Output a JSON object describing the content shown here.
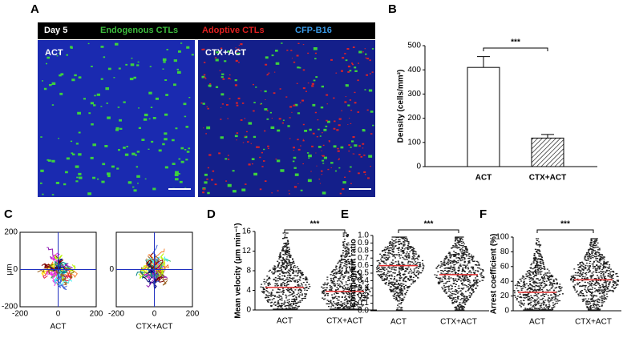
{
  "panel_a": {
    "label": "A",
    "header": {
      "day": "Day 5",
      "channels": [
        "Endogenous CTLs",
        "Adoptive CTLs",
        "CFP-B16"
      ]
    },
    "images": [
      "ACT",
      "CTX+ACT"
    ]
  },
  "chart_data": [
    {
      "type": "bar",
      "label": "B",
      "categories": [
        "ACT",
        "CTX+ACT"
      ],
      "values": [
        410,
        118
      ],
      "errors": [
        45,
        15
      ],
      "ylabel": "Density (cells/mm²)",
      "ylim": [
        0,
        500
      ],
      "yticks": [
        0,
        100,
        200,
        300,
        400,
        500
      ],
      "annotation": "***"
    },
    {
      "type": "trajectory",
      "label": "C",
      "panels": [
        "ACT",
        "CTX+ACT"
      ],
      "ylabel": "μm",
      "xlim": [
        -200,
        200
      ],
      "ylim": [
        -200,
        200
      ],
      "xticks": [
        -200,
        0,
        200
      ],
      "yticks": [
        -200,
        0,
        200
      ]
    },
    {
      "type": "dot",
      "label": "D",
      "categories": [
        "ACT",
        "CTX+ACT"
      ],
      "means": [
        4.6,
        3.8
      ],
      "ylabel": "Mean velocity (μm min⁻¹)",
      "ylim": [
        0,
        16
      ],
      "yticks": [
        0,
        4,
        8,
        12,
        16
      ],
      "annotation": "***",
      "mean_color": "#e03030"
    },
    {
      "type": "dot",
      "label": "E",
      "categories": [
        "ACT",
        "CTX+ACT"
      ],
      "means": [
        0.6,
        0.48
      ],
      "ylabel": "Confinement ratio",
      "ylim": [
        0,
        1
      ],
      "yticks": [
        {
          "value": 0,
          "label": "0.0"
        },
        0.1,
        0.2,
        0.3,
        0.4,
        0.5,
        0.6,
        0.7,
        0.8,
        0.9,
        {
          "value": 1,
          "label": "1.0"
        }
      ],
      "annotation": "***",
      "mean_color": "#e03030"
    },
    {
      "type": "dot",
      "label": "F",
      "categories": [
        "ACT",
        "CTX+ACT"
      ],
      "means": [
        25,
        42
      ],
      "ylabel": "Arrest coefficient (%)",
      "ylim": [
        0,
        100
      ],
      "yticks": [
        0,
        20,
        40,
        60,
        80,
        100
      ],
      "annotation": "***",
      "mean_color": "#e03030"
    }
  ]
}
